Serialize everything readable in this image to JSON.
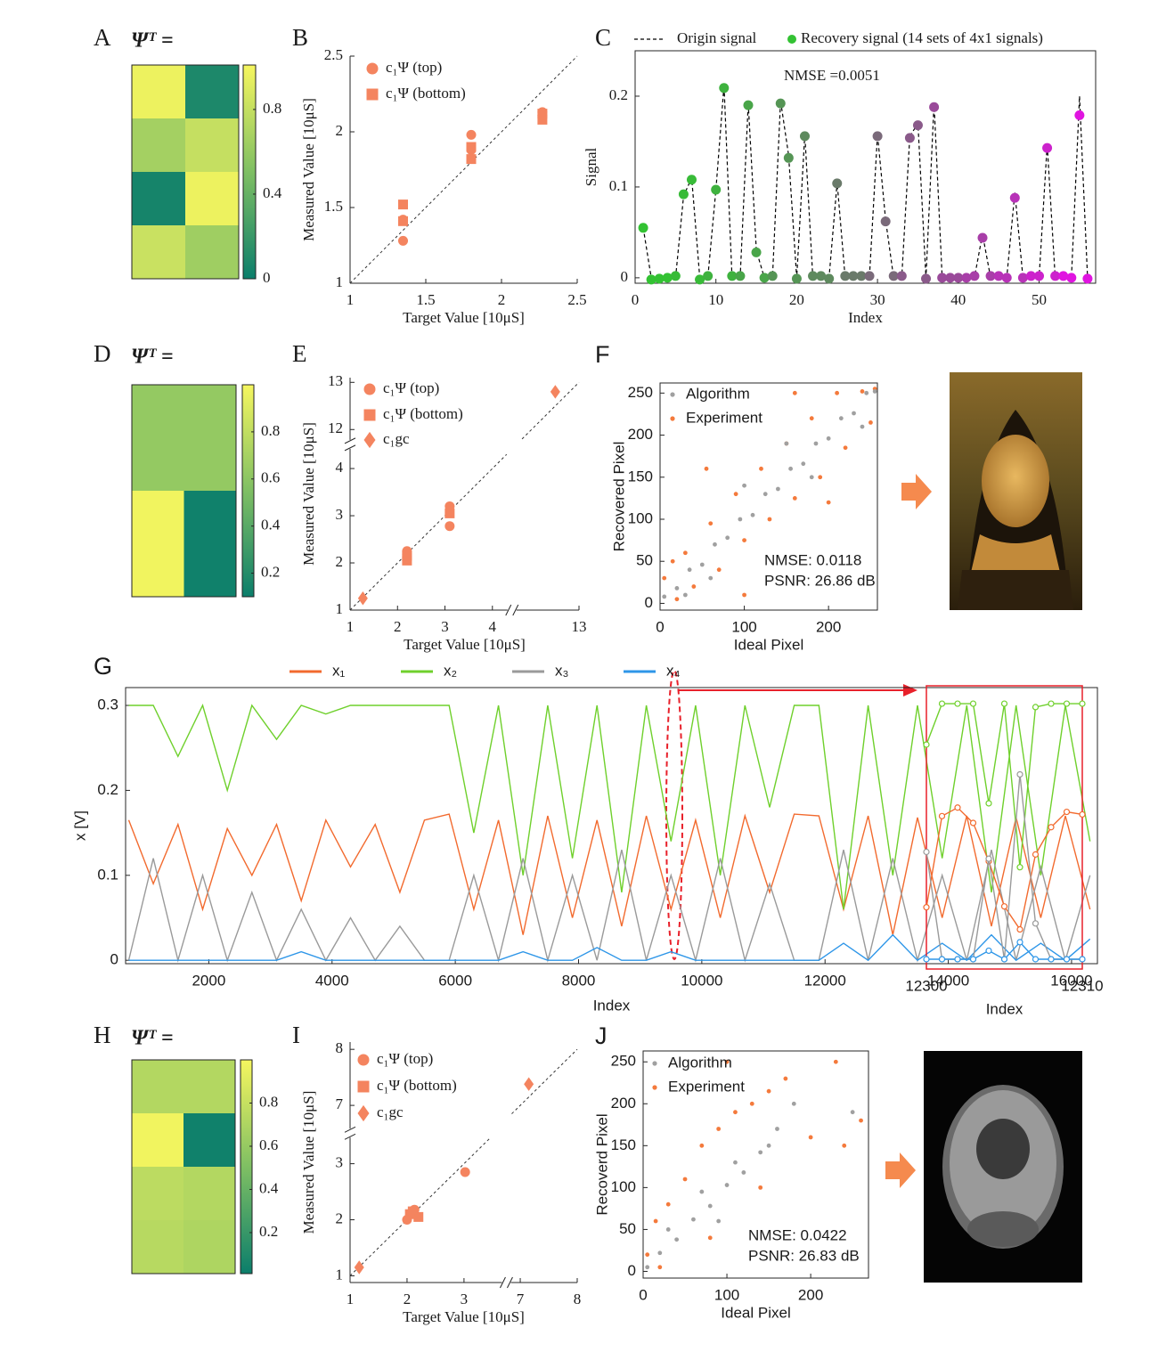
{
  "chart_data": [
    {
      "type": "heatmap",
      "label": "A",
      "title": "Ψᵀ =",
      "values": [
        [
          0.97,
          0.08
        ],
        [
          0.66,
          0.8
        ],
        [
          0.05,
          0.97
        ],
        [
          0.82,
          0.64
        ]
      ],
      "clim": [
        0,
        1.01
      ],
      "cticks": [
        0,
        0.4,
        0.8
      ],
      "colormap": [
        "#0b7e6b",
        "#7fbf63",
        "#f6f65f"
      ]
    },
    {
      "type": "scatter",
      "label": "B",
      "xlabel": "Target Value [10μS]",
      "ylabel": "Measured Value [10μS]",
      "xlim": [
        1,
        2.5
      ],
      "ylim": [
        1,
        2.5
      ],
      "xticks": [
        1,
        1.5,
        2,
        2.5
      ],
      "yticks": [
        1,
        1.5,
        2,
        2.5
      ],
      "diagonal": true,
      "legend": "upper left",
      "series": [
        {
          "name": "c₁Ψ (top)",
          "marker": "circle",
          "color": "#f4845f",
          "x": [
            1.35,
            1.35,
            1.8,
            1.8,
            2.27,
            2.27
          ],
          "y": [
            1.28,
            1.42,
            1.98,
            1.88,
            2.13,
            2.11
          ]
        },
        {
          "name": "c₁Ψ (bottom)",
          "marker": "square",
          "color": "#f4845f",
          "x": [
            1.35,
            1.35,
            1.8,
            1.8,
            2.27,
            2.27
          ],
          "y": [
            1.52,
            1.41,
            1.82,
            1.9,
            2.08,
            2.12
          ]
        }
      ]
    },
    {
      "type": "line",
      "label": "C",
      "xlabel": "Index",
      "ylabel": "Signal",
      "xlim": [
        0,
        57
      ],
      "ylim": [
        -0.006,
        0.25
      ],
      "xticks": [
        0,
        10,
        20,
        30,
        40,
        50
      ],
      "yticks": [
        0,
        0.1,
        0.2
      ],
      "box": true,
      "legend": "top",
      "annotation": "NMSE =0.0051",
      "set_size": 4,
      "x": [
        1,
        2,
        3,
        4,
        5,
        6,
        7,
        8,
        9,
        10,
        11,
        12,
        13,
        14,
        15,
        16,
        17,
        18,
        19,
        20,
        21,
        22,
        23,
        24,
        25,
        26,
        27,
        28,
        29,
        30,
        31,
        32,
        33,
        34,
        35,
        36,
        37,
        38,
        39,
        40,
        41,
        42,
        43,
        44,
        45,
        46,
        47,
        48,
        49,
        50,
        51,
        52,
        53,
        54,
        55,
        56
      ],
      "series": [
        {
          "name": "Origin signal",
          "style": "dashed",
          "color": "#000000",
          "values": [
            0.055,
            0,
            0,
            0,
            0,
            0.09,
            0.11,
            0,
            0,
            0.097,
            0.212,
            0,
            0,
            0.192,
            0.03,
            0,
            0,
            0.195,
            0.135,
            0,
            0.158,
            0,
            0,
            0,
            0.105,
            0,
            0,
            0,
            0,
            0.158,
            0.064,
            0,
            0,
            0.156,
            0.17,
            0,
            0.192,
            0,
            0,
            0,
            0,
            0,
            0.048,
            0,
            0,
            0,
            0.094,
            0,
            0,
            0,
            0.147,
            0,
            0,
            0,
            0.2,
            0
          ]
        },
        {
          "name": "Recovery signal (14 sets of 4x1 signals)",
          "style": "markers",
          "colors": [
            "#33c233",
            "#38bb38",
            "#3eb23e",
            "#49a549",
            "#559555",
            "#5e8a5e",
            "#6a7a6a",
            "#7a6a7a",
            "#8a5a8a",
            "#9a4a9a",
            "#a83ea8",
            "#b832b8",
            "#cc22cc",
            "#e014e0"
          ],
          "values": [
            0.055,
            -0.002,
            -0.001,
            0,
            0.002,
            0.092,
            0.108,
            -0.002,
            0.002,
            0.097,
            0.209,
            0.002,
            0.002,
            0.19,
            0.028,
            0,
            0.002,
            0.192,
            0.132,
            -0.001,
            0.156,
            0.002,
            0.002,
            -0.001,
            0.104,
            0.002,
            0.002,
            0.002,
            0.002,
            0.156,
            0.062,
            0.002,
            0.002,
            0.154,
            0.168,
            -0.001,
            0.188,
            0,
            0,
            0,
            0,
            0.002,
            0.044,
            0.002,
            0.002,
            0,
            0.088,
            0,
            0.002,
            0.002,
            0.143,
            0.002,
            0.002,
            0,
            0.179,
            -0.001
          ]
        }
      ]
    },
    {
      "type": "heatmap",
      "label": "D",
      "title": "Ψᵀ =",
      "values": [
        [
          0.63,
          0.63
        ],
        [
          0.63,
          0.63
        ],
        [
          0.98,
          0.12
        ],
        [
          0.98,
          0.12
        ]
      ],
      "clim": [
        0.1,
        1.0
      ],
      "cticks": [
        0.2,
        0.4,
        0.6,
        0.8
      ],
      "colormap": [
        "#0b7e6b",
        "#7fbf63",
        "#f6f65f"
      ]
    },
    {
      "type": "scatter",
      "label": "E",
      "xlabel": "Target Value [10μS]",
      "ylabel": "Measured Value [10μS]",
      "xlim": [
        1,
        13
      ],
      "xbreak": [
        4.3,
        11.7
      ],
      "ylim": [
        1,
        13.1
      ],
      "ybreak": [
        4.4,
        11.8
      ],
      "xticks": [
        1,
        2,
        3,
        4,
        13
      ],
      "yticks": [
        1,
        2,
        3,
        4,
        12,
        13
      ],
      "diagonal": true,
      "legend": "upper left",
      "series": [
        {
          "name": "c₁Ψ (top)",
          "marker": "circle",
          "color": "#f4845f",
          "x": [
            2.2,
            2.2,
            2.2,
            3.1,
            3.1
          ],
          "y": [
            2.1,
            2.18,
            2.25,
            2.78,
            3.2
          ]
        },
        {
          "name": "c₁Ψ  (bottom)",
          "marker": "square",
          "color": "#f4845f",
          "x": [
            2.2,
            2.2,
            3.1
          ],
          "y": [
            2.05,
            2.15,
            3.05
          ]
        },
        {
          "name": "c₁gc",
          "marker": "diamond",
          "color": "#f4845f",
          "x": [
            1.27,
            12.5
          ],
          "y": [
            1.25,
            12.8
          ]
        }
      ]
    },
    {
      "type": "scatter",
      "label": "F",
      "xlabel": "Ideal Pixel",
      "ylabel": "Recovered Pixel",
      "xlim": [
        0,
        258
      ],
      "ylim": [
        -8,
        262
      ],
      "xticks": [
        0,
        100,
        200
      ],
      "yticks": [
        0,
        50,
        100,
        150,
        200,
        250
      ],
      "box": true,
      "legend": "upper left",
      "annotations": [
        "NMSE: 0.0118",
        "PSNR: 26.86 dB"
      ],
      "series": [
        {
          "name": "Algorithm",
          "marker": "dot",
          "color": "#a0a0a0",
          "x": [
            5,
            20,
            35,
            50,
            65,
            80,
            95,
            110,
            125,
            140,
            155,
            170,
            185,
            200,
            215,
            230,
            245,
            255,
            60,
            150,
            30,
            240,
            100,
            180
          ],
          "y": [
            8,
            18,
            40,
            46,
            70,
            78,
            100,
            105,
            130,
            136,
            160,
            166,
            190,
            196,
            220,
            226,
            250,
            252,
            30,
            190,
            10,
            210,
            140,
            150
          ]
        },
        {
          "name": "Experiment",
          "marker": "dot",
          "color": "#f47a3c",
          "x": [
            5,
            15,
            30,
            40,
            60,
            70,
            90,
            100,
            120,
            130,
            150,
            160,
            180,
            190,
            210,
            220,
            240,
            250,
            20,
            100,
            55,
            200,
            160,
            255
          ],
          "y": [
            30,
            50,
            60,
            20,
            95,
            40,
            130,
            75,
            160,
            100,
            190,
            125,
            220,
            150,
            250,
            185,
            252,
            215,
            5,
            10,
            160,
            120,
            250,
            255
          ]
        }
      ]
    },
    {
      "type": "line",
      "label": "G",
      "xlabel": "Index",
      "ylabel": "x [V]",
      "xlim": [
        650,
        16420
      ],
      "ylim": [
        -0.004,
        0.321
      ],
      "xticks": [
        2000,
        4000,
        6000,
        8000,
        10000,
        12000,
        14000,
        16000
      ],
      "yticks": [
        0,
        0.1,
        0.2,
        0.3
      ],
      "box": true,
      "legend": "top",
      "x": [
        700,
        1100,
        1500,
        1900,
        2300,
        2700,
        3100,
        3500,
        3900,
        4300,
        4700,
        5100,
        5500,
        5900,
        6300,
        6700,
        7100,
        7500,
        7900,
        8300,
        8700,
        9100,
        9500,
        9900,
        10300,
        10700,
        11100,
        11500,
        11900,
        12300,
        12700,
        13100,
        13500,
        13900,
        14300,
        14700,
        15100,
        15500,
        15900,
        16300
      ],
      "series": [
        {
          "name": "x₁",
          "color": "#f26a2e",
          "values": [
            0.165,
            0.09,
            0.16,
            0.06,
            0.155,
            0.1,
            0.16,
            0.07,
            0.165,
            0.11,
            0.16,
            0.08,
            0.165,
            0.172,
            0.06,
            0.165,
            0.03,
            0.17,
            0.05,
            0.165,
            0.04,
            0.17,
            0.06,
            0.165,
            0.05,
            0.17,
            0.08,
            0.172,
            0.17,
            0.06,
            0.17,
            0.03,
            0.168,
            0.05,
            0.17,
            0.04,
            0.168,
            0.05,
            0.17,
            0.06
          ]
        },
        {
          "name": "x₂",
          "color": "#6fd02c",
          "values": [
            0.3,
            0.3,
            0.24,
            0.3,
            0.2,
            0.3,
            0.26,
            0.3,
            0.29,
            0.3,
            0.3,
            0.3,
            0.3,
            0.3,
            0.15,
            0.3,
            0.1,
            0.3,
            0.12,
            0.3,
            0.08,
            0.3,
            0.14,
            0.3,
            0.1,
            0.3,
            0.18,
            0.3,
            0.3,
            0.06,
            0.3,
            0.1,
            0.3,
            0.12,
            0.3,
            0.08,
            0.3,
            0.1,
            0.3,
            0.14
          ]
        },
        {
          "name": "x₃",
          "color": "#9a9a9a",
          "values": [
            0,
            0.12,
            0,
            0.1,
            0,
            0.08,
            0,
            0.06,
            0,
            0.05,
            0,
            0.04,
            0,
            0,
            0.1,
            0,
            0.12,
            0,
            0.1,
            0,
            0.13,
            0,
            0.1,
            0,
            0.12,
            0,
            0.09,
            0,
            0,
            0.13,
            0,
            0.12,
            0,
            0.1,
            0,
            0.13,
            0,
            0.11,
            0,
            0.1
          ]
        },
        {
          "name": "x₄",
          "color": "#2e96e8",
          "values": [
            0,
            0,
            0,
            0,
            0,
            0,
            0,
            0.01,
            0,
            0,
            0,
            0,
            0,
            0,
            0,
            0,
            0.01,
            0,
            0,
            0.015,
            0,
            0,
            0.01,
            0,
            0,
            0,
            0,
            0,
            0,
            0.02,
            0,
            0.03,
            0,
            0.02,
            0,
            0.03,
            0,
            0.02,
            0,
            0.025
          ]
        }
      ]
    },
    {
      "type": "line",
      "xlabel": "Index",
      "xlim": [
        12300,
        12310
      ],
      "ylim": [
        -0.0115,
        0.321
      ],
      "xticks": [
        12300,
        12310
      ],
      "box": true,
      "markers": true,
      "axis_color": "#e8202a",
      "x": [
        12300,
        12301,
        12302,
        12303,
        12304,
        12305,
        12306,
        12307,
        12308,
        12309,
        12310
      ],
      "series": [
        {
          "color": "#f26a2e",
          "values": [
            0.061,
            0.168,
            0.178,
            0.16,
            0.115,
            0.062,
            0.035,
            0.123,
            0.155,
            0.173,
            0.17
          ]
        },
        {
          "color": "#6fd02c",
          "values": [
            0.252,
            0.3,
            0.3,
            0.3,
            0.183,
            0.3,
            0.108,
            0.296,
            0.3,
            0.3,
            0.3
          ]
        },
        {
          "color": "#9a9a9a",
          "values": [
            0.126,
            0,
            0,
            0,
            0.118,
            0,
            0.217,
            0.042,
            0,
            0,
            0
          ]
        },
        {
          "color": "#2e96e8",
          "values": [
            0,
            0,
            0,
            0,
            0.01,
            0,
            0.02,
            0,
            0,
            0,
            0
          ]
        }
      ]
    },
    {
      "type": "heatmap",
      "label": "H",
      "title": "Ψᵀ =",
      "values": [
        [
          0.72,
          0.72
        ],
        [
          0.98,
          0.03
        ],
        [
          0.76,
          0.72
        ],
        [
          0.74,
          0.7
        ]
      ],
      "clim": [
        0.01,
        1.0
      ],
      "cticks": [
        0.2,
        0.4,
        0.6,
        0.8
      ],
      "colormap": [
        "#0b7e6b",
        "#7fbf63",
        "#f6f65f"
      ]
    },
    {
      "type": "scatter",
      "label": "I",
      "xlabel": "Target Value [10μS]",
      "ylabel": "Measured Value [10μS]",
      "xlim": [
        1,
        8
      ],
      "xbreak": [
        3.65,
        6.85
      ],
      "ylim": [
        0.88,
        8.13
      ],
      "ybreak": [
        3.45,
        6.6
      ],
      "xticks": [
        1,
        2,
        3,
        7,
        8
      ],
      "yticks": [
        1,
        2,
        3,
        7,
        8
      ],
      "diagonal": true,
      "legend": "upper left",
      "series": [
        {
          "name": "c₁Ψ (top)",
          "marker": "circle",
          "color": "#f4845f",
          "x": [
            2.0,
            2.13,
            3.02
          ],
          "y": [
            2.0,
            2.18,
            2.85
          ]
        },
        {
          "name": "c₁Ψ  (bottom)",
          "marker": "square",
          "color": "#f4845f",
          "x": [
            2.1,
            2.2,
            2.05
          ],
          "y": [
            2.15,
            2.05,
            2.1
          ]
        },
        {
          "name": "c₁gc",
          "marker": "diamond",
          "color": "#f4845f",
          "x": [
            1.16,
            7.15
          ],
          "y": [
            1.15,
            7.38
          ]
        }
      ]
    },
    {
      "type": "scatter",
      "label": "J",
      "xlabel": "Ideal Pixel",
      "ylabel": "Recoverd Pixel",
      "xlim": [
        0,
        269
      ],
      "ylim": [
        -8,
        263
      ],
      "xticks": [
        0,
        100,
        200
      ],
      "yticks": [
        0,
        50,
        100,
        150,
        200,
        250
      ],
      "box": true,
      "legend": "upper left",
      "annotations": [
        "NMSE: 0.0422",
        "PSNR: 26.83 dB"
      ],
      "series": [
        {
          "name": "Algorithm",
          "marker": "dot",
          "color": "#a0a0a0",
          "x": [
            5,
            20,
            40,
            60,
            80,
            100,
            120,
            140,
            150,
            30,
            70,
            110,
            90,
            160,
            250,
            180
          ],
          "y": [
            5,
            22,
            38,
            62,
            78,
            103,
            118,
            142,
            150,
            50,
            95,
            130,
            60,
            170,
            190,
            200
          ]
        },
        {
          "name": "Experiment",
          "marker": "dot",
          "color": "#f47a3c",
          "x": [
            5,
            15,
            30,
            50,
            70,
            90,
            110,
            130,
            150,
            20,
            80,
            140,
            200,
            240,
            170,
            230,
            260,
            100
          ],
          "y": [
            20,
            60,
            80,
            110,
            150,
            170,
            190,
            200,
            215,
            5,
            40,
            100,
            160,
            150,
            230,
            250,
            180,
            250
          ]
        }
      ]
    }
  ]
}
